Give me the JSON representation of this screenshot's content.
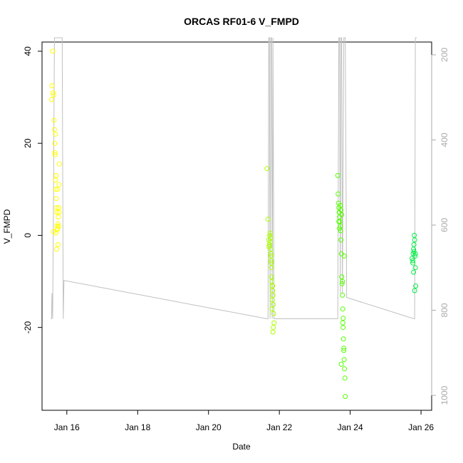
{
  "chart_data": {
    "type": "scatter",
    "title": "ORCAS RF01-6 V_FMPD",
    "xlabel": "Date",
    "ylabel": "V_FMPD",
    "xlim": [
      15.3,
      26.3
    ],
    "ylim": [
      -38,
      42
    ],
    "x_ticks": [
      {
        "value": 16,
        "label": "Jan 16"
      },
      {
        "value": 18,
        "label": "Jan 18"
      },
      {
        "value": 20,
        "label": "Jan 20"
      },
      {
        "value": 22,
        "label": "Jan 22"
      },
      {
        "value": 24,
        "label": "Jan 24"
      },
      {
        "value": 26,
        "label": "Jan 26"
      }
    ],
    "y_ticks": [
      -20,
      0,
      20,
      40
    ],
    "y2_ticks": [
      200,
      400,
      600,
      800,
      1000
    ],
    "y2lim": [
      1035,
      170
    ],
    "y2_reversed": true,
    "grid": false,
    "legend": "none",
    "series": [
      {
        "color": "#ffff00",
        "x": [
          15.57,
          15.58,
          15.6,
          15.61,
          15.63,
          15.64,
          15.65,
          15.66,
          15.67,
          15.68,
          15.69,
          15.7,
          15.71,
          15.72,
          15.72,
          15.73,
          15.74,
          15.75,
          15.76,
          15.77,
          15.78,
          15.79,
          15.66,
          15.68,
          15.7,
          15.74,
          15.77,
          15.71,
          15.75,
          15.69,
          15.78,
          15.62
        ],
        "y": [
          29.5,
          32.5,
          40,
          31,
          30.5,
          25,
          23,
          20,
          17.5,
          12,
          10,
          8,
          6,
          5,
          2,
          1.2,
          1.5,
          2.5,
          4,
          6,
          11,
          15.5,
          18,
          22,
          13,
          10,
          2,
          -3,
          -2,
          0.5,
          5,
          0.8
        ]
      },
      {
        "color": "#aaff00",
        "x": [
          21.65,
          21.68,
          21.7,
          21.72,
          21.73,
          21.74,
          21.75,
          21.76,
          21.77,
          21.78,
          21.79,
          21.8,
          21.81,
          21.82,
          21.83,
          21.84,
          21.85,
          21.75,
          21.78,
          21.8,
          21.82,
          21.76,
          21.74,
          21.71,
          21.79,
          21.83,
          21.81,
          21.77
        ],
        "y": [
          14.5,
          3.5,
          -1,
          -2,
          0,
          -1.5,
          -3,
          -4,
          -5.5,
          -7,
          -10,
          -11,
          -12,
          -13,
          -15,
          -17,
          -19,
          -0.5,
          -9,
          -14,
          -21,
          -4.5,
          0.5,
          -2.5,
          -16,
          -20,
          -11,
          -6
        ]
      },
      {
        "color": "#55ff00",
        "x": [
          23.65,
          23.66,
          23.67,
          23.68,
          23.69,
          23.7,
          23.71,
          23.72,
          23.73,
          23.74,
          23.75,
          23.76,
          23.77,
          23.78,
          23.79,
          23.8,
          23.81,
          23.82,
          23.83,
          23.84,
          23.85,
          23.86,
          23.72,
          23.74,
          23.76,
          23.78,
          23.8,
          23.82,
          23.7,
          23.68,
          23.75,
          23.79,
          23.83
        ],
        "y": [
          13,
          9,
          7,
          6,
          5,
          4,
          3,
          2,
          1,
          -1,
          -4,
          -9,
          -10.5,
          -13,
          -16,
          -20,
          -22.5,
          -25,
          -27,
          -29,
          -31,
          -35,
          6.5,
          5.5,
          4.5,
          -10,
          -18,
          -24.5,
          1.5,
          3,
          -28,
          -19,
          -4.5
        ]
      },
      {
        "color": "#00ee44",
        "x": [
          25.75,
          25.77,
          25.78,
          25.79,
          25.8,
          25.81,
          25.82,
          25.83,
          25.84,
          25.85,
          25.79,
          25.82,
          25.8,
          25.84,
          25.77
        ],
        "y": [
          -5,
          -5.5,
          -4,
          -3,
          -2,
          0,
          -1,
          -4.5,
          -7,
          -11,
          -8,
          -12,
          -3.5,
          -4,
          -6
        ]
      }
    ],
    "line_series": {
      "color": "#c0c0c0",
      "axis": "right",
      "x": [
        15.55,
        15.57,
        15.58,
        15.6,
        15.62,
        15.65,
        15.67,
        15.69,
        15.7,
        15.72,
        15.74,
        15.76,
        15.78,
        15.8,
        15.82,
        15.85,
        15.87,
        15.9,
        15.92,
        21.65,
        21.68,
        21.7,
        21.72,
        21.74,
        21.76,
        21.78,
        21.8,
        21.82,
        21.85,
        21.88,
        23.65,
        23.68,
        23.7,
        23.72,
        23.74,
        23.76,
        23.78,
        23.82,
        23.86,
        23.9,
        25.8,
        25.82,
        25.84,
        25.86,
        25.88
      ],
      "y": [
        820,
        820,
        760,
        820,
        600,
        160,
        160,
        160,
        160,
        160,
        160,
        160,
        160,
        160,
        160,
        160,
        160,
        820,
        730,
        820,
        820,
        160,
        160,
        820,
        160,
        160,
        820,
        160,
        820,
        820,
        820,
        160,
        160,
        760,
        160,
        160,
        760,
        160,
        160,
        770,
        820,
        820,
        160,
        160,
        160
      ]
    }
  }
}
